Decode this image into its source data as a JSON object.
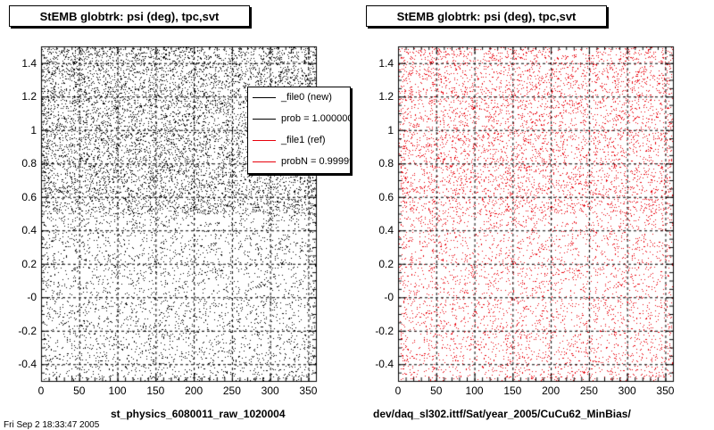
{
  "colors": {
    "black": "#000000",
    "red": "#e8000b",
    "grid": "#000000"
  },
  "chart_data": [
    {
      "type": "scatter",
      "title": "StEMB globtrk: psi (deg), tpc,svt",
      "xlim": [
        0,
        360
      ],
      "ylim": [
        -0.5,
        1.5
      ],
      "x_ticks": [
        "0",
        "50",
        "100",
        "150",
        "200",
        "250",
        "300",
        "350"
      ],
      "y_ticks": [
        "-0.4",
        "-0.2",
        "-0",
        "0.2",
        "0.4",
        "0.6",
        "0.8",
        "1",
        "1.2",
        "1.4"
      ],
      "grid": true,
      "series": [
        {
          "name": "_file0 (new)",
          "color": "#000000",
          "dense_range": [
            0.5,
            1.5
          ],
          "sparse_range": [
            -0.5,
            0.5
          ]
        }
      ],
      "legend": {
        "placement": "top-right",
        "entries": [
          {
            "label": "_file0 (new)",
            "color": "#000000"
          },
          {
            "label": "prob = 1.000000",
            "color": "#000000"
          },
          {
            "label": "_file1 (ref)",
            "color": "#e8000b"
          },
          {
            "label": "probN = 0.999999",
            "color": "#e8000b"
          }
        ]
      },
      "xlabel": "st_physics_6080011_raw_1020004"
    },
    {
      "type": "scatter",
      "title": "StEMB globtrk: psi (deg), tpc,svt",
      "xlim": [
        0,
        360
      ],
      "ylim": [
        -0.5,
        1.5
      ],
      "x_ticks": [
        "0",
        "50",
        "100",
        "150",
        "200",
        "250",
        "300",
        "350"
      ],
      "y_ticks": [
        "-0.4",
        "-0.2",
        "-0",
        "0.2",
        "0.4",
        "0.6",
        "0.8",
        "1",
        "1.2",
        "1.4"
      ],
      "grid": true,
      "series": [
        {
          "name": "_file1 (ref)",
          "color": "#e8000b",
          "dense_range": [
            0.5,
            1.5
          ],
          "sparse_range": [
            -0.5,
            0.5
          ]
        }
      ],
      "xlabel": "dev/daq_sl302.ittf/Sat/year_2005/CuCu62_MinBias/"
    }
  ],
  "corner_text": "Fri Sep 2 18:33:47 2005"
}
